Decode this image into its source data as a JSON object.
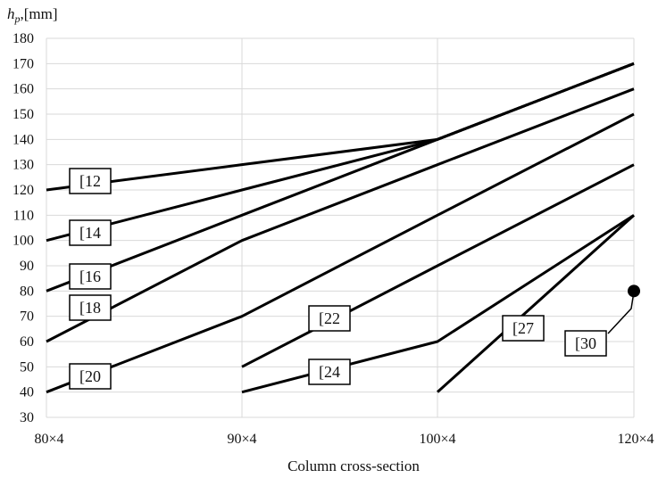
{
  "chart_data": {
    "type": "line",
    "title": "",
    "ylabel_main": "h",
    "ylabel_sub": "p",
    "ylabel_unit": ",[mm]",
    "xlabel": "Column cross-section",
    "categories": [
      "80×4",
      "90×4",
      "100×4",
      "120×4"
    ],
    "ylim": [
      30,
      180
    ],
    "yticks": [
      30,
      40,
      50,
      60,
      70,
      80,
      90,
      100,
      110,
      120,
      130,
      140,
      150,
      160,
      170,
      180
    ],
    "grid": true,
    "series": [
      {
        "name": "[12",
        "values": [
          120,
          130,
          140,
          170
        ]
      },
      {
        "name": "[14",
        "values": [
          100,
          120,
          140,
          170
        ]
      },
      {
        "name": "[16",
        "values": [
          80,
          110,
          140,
          170
        ]
      },
      {
        "name": "[18",
        "values": [
          60,
          100,
          130,
          160
        ]
      },
      {
        "name": "[20",
        "values": [
          40,
          70,
          110,
          150
        ]
      },
      {
        "name": "[22",
        "values": [
          null,
          50,
          90,
          130
        ]
      },
      {
        "name": "[24",
        "values": [
          null,
          40,
          60,
          110
        ]
      },
      {
        "name": "[27",
        "values": [
          null,
          null,
          40,
          110
        ]
      },
      {
        "name": "[30",
        "values": [
          null,
          null,
          null,
          80
        ]
      }
    ]
  }
}
